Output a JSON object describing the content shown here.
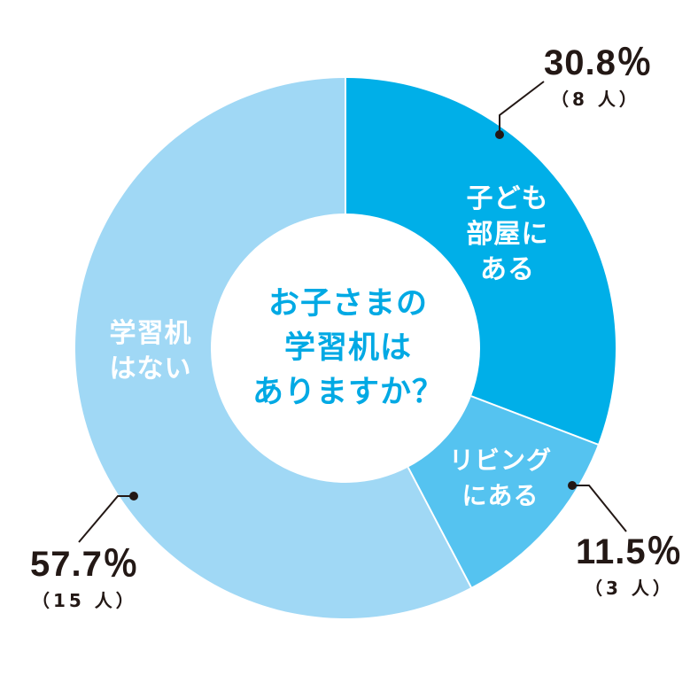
{
  "chart_data": {
    "type": "pie",
    "subtype": "donut",
    "title": "お子さまの学習机はありますか？",
    "categories": [
      "子ども部屋にある",
      "リビングにある",
      "学習机はない"
    ],
    "values": [
      30.8,
      11.5,
      57.7
    ],
    "counts": [
      8,
      3,
      15
    ],
    "unit": "%",
    "colors": [
      "#00afe8",
      "#55c3f0",
      "#a0d8f5"
    ],
    "start_angle_deg": 0,
    "direction": "clockwise",
    "legend": "none (labels placed inside segments)"
  },
  "center": {
    "title": "お子さまの\n学習机は\nありますか？"
  },
  "segments": [
    {
      "label": "子ども\n部屋に\nある",
      "percent": "30.8％",
      "count": "（8 人）"
    },
    {
      "label": "リビング\nにある",
      "percent": "11.5％",
      "count": "（3 人）"
    },
    {
      "label": "学習机\nはない",
      "percent": "57.7％",
      "count": "（15 人）"
    }
  ],
  "colors": {
    "title_text": "#00a9e4",
    "callout_text": "#231815",
    "separator": "#ffffff"
  }
}
